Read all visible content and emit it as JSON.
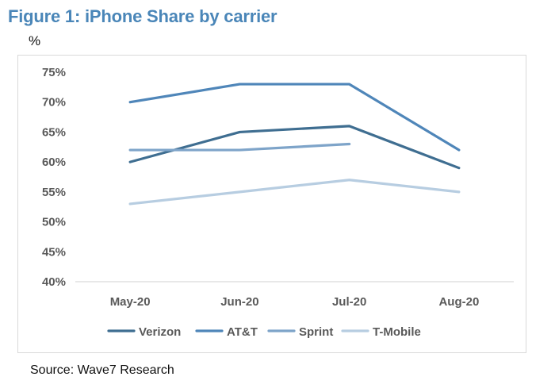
{
  "figure": {
    "title": "Figure 1: iPhone Share by carrier",
    "unit": "%",
    "source": "Source: Wave7 Research"
  },
  "chart_data": {
    "type": "line",
    "title": "Figure 1: iPhone Share by carrier",
    "xlabel": "",
    "ylabel": "%",
    "categories": [
      "May-20",
      "Jun-20",
      "Jul-20",
      "Aug-20"
    ],
    "ylim": [
      40,
      75
    ],
    "yticks": [
      40,
      45,
      50,
      55,
      60,
      65,
      70,
      75
    ],
    "ytick_labels": [
      "40%",
      "45%",
      "50%",
      "55%",
      "60%",
      "65%",
      "70%",
      "75%"
    ],
    "grid": false,
    "legend_position": "bottom",
    "series": [
      {
        "name": "Verizon",
        "color": "#3f6e91",
        "values": [
          60,
          65,
          66,
          59
        ]
      },
      {
        "name": "AT&T",
        "color": "#4f86b9",
        "values": [
          70,
          73,
          73,
          62
        ]
      },
      {
        "name": "Sprint",
        "color": "#7ea4c9",
        "values": [
          62,
          62,
          63,
          null
        ]
      },
      {
        "name": "T-Mobile",
        "color": "#b7cde1",
        "values": [
          53,
          55,
          57,
          55
        ]
      }
    ]
  }
}
